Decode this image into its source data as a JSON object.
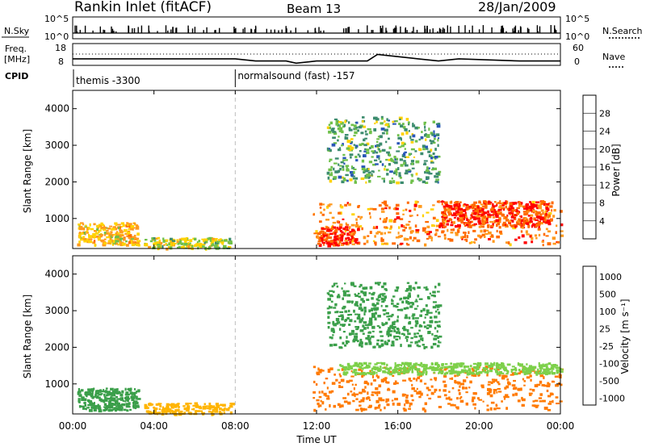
{
  "header": {
    "station": "Rankin Inlet (fitACF)",
    "beam": "Beam 13",
    "date": "28/Jan/2009"
  },
  "side_labels": {
    "nsky": "N.Sky",
    "freq": "Freq.",
    "freq_unit": "[MHz]",
    "cpid": "CPID",
    "nsearch": "N.Search",
    "nave": "Nave",
    "nsky_ticks": [
      "10^5",
      "10^0"
    ],
    "nsearch_ticks": [
      "10^5",
      "10^0"
    ],
    "freq_ticks": [
      "18",
      "8"
    ],
    "nave_ticks": [
      "60",
      "0"
    ]
  },
  "cpid": {
    "segments": [
      {
        "label": "themis -3300",
        "start_hour": 0
      },
      {
        "label": "normalsound (fast) -157",
        "start_hour": 8
      }
    ]
  },
  "time_axis": {
    "label": "Time UT",
    "ticks": [
      "00:00",
      "04:00",
      "08:00",
      "12:00",
      "16:00",
      "20:00",
      "00:00"
    ]
  },
  "range_axis": {
    "label": "Slant Range [km]",
    "ticks": [
      "1000",
      "2000",
      "3000",
      "4000"
    ]
  },
  "power_bar": {
    "label": "Power [dB]",
    "ticks": [
      "4",
      "8",
      "12",
      "16",
      "20",
      "24",
      "28"
    ],
    "colors": [
      "#0000ff",
      "#2a57b8",
      "#3c8c6e",
      "#6fc04a",
      "#ffd200",
      "#ff9a1e",
      "#ff6a00",
      "#ff0000"
    ]
  },
  "velocity_bar": {
    "label": "Velocity [m s⁻¹]",
    "ticks": [
      "1000",
      "500",
      "100",
      "25",
      "-25",
      "-100",
      "-500",
      "-1000"
    ],
    "colors": [
      "#2a4cc8",
      "#2f7f83",
      "#3b9f4a",
      "#7dd04a",
      "#bdbdb3",
      "#ffb400",
      "#ff7a00",
      "#ff0000"
    ]
  },
  "chart_data": {
    "type": "heatmap",
    "title": "Rankin Inlet (fitACF)",
    "xlabel": "Time UT",
    "ylabel": "Slant Range [km]",
    "xlim": [
      0,
      24
    ],
    "ylim": [
      180,
      4500
    ],
    "boundary_hour": 8,
    "freq_mhz_approx": [
      {
        "hour": 0,
        "value": 11
      },
      {
        "hour": 8,
        "value": 11
      },
      {
        "hour": 9,
        "value": 10
      },
      {
        "hour": 10.5,
        "value": 10
      },
      {
        "hour": 11,
        "value": 9
      },
      {
        "hour": 12,
        "value": 10
      },
      {
        "hour": 14.5,
        "value": 10
      },
      {
        "hour": 15,
        "value": 13
      },
      {
        "hour": 16,
        "value": 12
      },
      {
        "hour": 17,
        "value": 11
      },
      {
        "hour": 18,
        "value": 10
      },
      {
        "hour": 19,
        "value": 11
      },
      {
        "hour": 22,
        "value": 10
      },
      {
        "hour": 24,
        "value": 10
      }
    ],
    "power_regions": [
      {
        "t0": 0.2,
        "t1": 3.2,
        "r0": 300,
        "r1": 900,
        "level": 20
      },
      {
        "t0": 3.5,
        "t1": 7.8,
        "r0": 200,
        "r1": 500,
        "level": 16
      },
      {
        "t0": 11.8,
        "t1": 24,
        "r0": 300,
        "r1": 1500,
        "level": 24
      },
      {
        "t0": 12,
        "t1": 14,
        "r0": 300,
        "r1": 800,
        "level": 28
      },
      {
        "t0": 18,
        "t1": 23.5,
        "r0": 800,
        "r1": 1500,
        "level": 28
      },
      {
        "t0": 12.5,
        "t1": 18,
        "r0": 2000,
        "r1": 3800,
        "level": 12
      }
    ],
    "velocity_regions": [
      {
        "t0": 0.2,
        "t1": 3.2,
        "r0": 300,
        "r1": 900,
        "level": 100
      },
      {
        "t0": 3.5,
        "t1": 7.8,
        "r0": 200,
        "r1": 500,
        "level": -100
      },
      {
        "t0": 11.8,
        "t1": 24,
        "r0": 300,
        "r1": 1500,
        "level": -500
      },
      {
        "t0": 13,
        "t1": 24,
        "r0": 1300,
        "r1": 1600,
        "level": 25
      },
      {
        "t0": 12.5,
        "t1": 18,
        "r0": 2000,
        "r1": 3800,
        "level": 100
      }
    ]
  }
}
